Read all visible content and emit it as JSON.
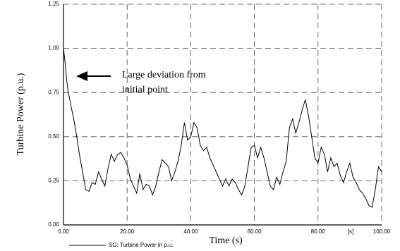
{
  "chart_data": {
    "type": "line",
    "y_label": "Turbine Power (p.u.)",
    "x_label": "Time (s)",
    "x_unit": "[s]",
    "annotation": [
      "Large deviation from",
      "initial point"
    ],
    "x": [
      0,
      0.5,
      1,
      1.5,
      2,
      2.5,
      3,
      4,
      5,
      6,
      7,
      8,
      9,
      10,
      11,
      12,
      13,
      14,
      15,
      16,
      17,
      18,
      19,
      20,
      21,
      22,
      23,
      24,
      25,
      26,
      27,
      28,
      29,
      30,
      31,
      32,
      33,
      34,
      35,
      36,
      37,
      38,
      39,
      40,
      41,
      42,
      43,
      44,
      45,
      46,
      47,
      48,
      49,
      50,
      51,
      52,
      53,
      54,
      55,
      56,
      57,
      58,
      59,
      60,
      61,
      62,
      63,
      64,
      65,
      66,
      67,
      68,
      69,
      70,
      71,
      72,
      73,
      74,
      75,
      76,
      77,
      78,
      79,
      80,
      81,
      82,
      83,
      84,
      85,
      86,
      87,
      88,
      89,
      90,
      91,
      92,
      93,
      94,
      95,
      96,
      97,
      98,
      99,
      100
    ],
    "series": [
      {
        "name": "SG: Turbine Power in p.u.",
        "color": "#000000",
        "values": [
          1.0,
          0.92,
          0.82,
          0.75,
          0.71,
          0.66,
          0.62,
          0.52,
          0.4,
          0.3,
          0.2,
          0.19,
          0.24,
          0.23,
          0.3,
          0.26,
          0.22,
          0.32,
          0.4,
          0.36,
          0.4,
          0.41,
          0.38,
          0.34,
          0.26,
          0.22,
          0.18,
          0.29,
          0.2,
          0.23,
          0.22,
          0.17,
          0.22,
          0.3,
          0.37,
          0.35,
          0.33,
          0.25,
          0.3,
          0.36,
          0.45,
          0.58,
          0.48,
          0.5,
          0.58,
          0.55,
          0.45,
          0.42,
          0.44,
          0.38,
          0.34,
          0.3,
          0.26,
          0.22,
          0.26,
          0.22,
          0.26,
          0.24,
          0.2,
          0.17,
          0.22,
          0.33,
          0.44,
          0.45,
          0.38,
          0.44,
          0.38,
          0.3,
          0.22,
          0.2,
          0.27,
          0.23,
          0.3,
          0.36,
          0.55,
          0.6,
          0.52,
          0.58,
          0.65,
          0.71,
          0.62,
          0.5,
          0.38,
          0.35,
          0.44,
          0.4,
          0.3,
          0.38,
          0.33,
          0.35,
          0.28,
          0.24,
          0.3,
          0.35,
          0.27,
          0.24,
          0.2,
          0.18,
          0.15,
          0.11,
          0.1,
          0.2,
          0.33,
          0.3
        ]
      }
    ],
    "xlim": [
      0,
      100
    ],
    "ylim": [
      0,
      1.25
    ],
    "xticks": [
      {
        "value": 0,
        "label": "0.00"
      },
      {
        "value": 20,
        "label": "20.00"
      },
      {
        "value": 40,
        "label": "40.00"
      },
      {
        "value": 60,
        "label": "60.00"
      },
      {
        "value": 80,
        "label": "80.00"
      },
      {
        "value": 100,
        "label": "100.00"
      }
    ],
    "yticks": [
      {
        "value": 0,
        "label": "0.00"
      },
      {
        "value": 0.25,
        "label": "0.25"
      },
      {
        "value": 0.5,
        "label": "0.50"
      },
      {
        "value": 0.75,
        "label": "0.75"
      },
      {
        "value": 1,
        "label": "1.00"
      },
      {
        "value": 1.25,
        "label": "1.25"
      }
    ],
    "grid": true
  }
}
